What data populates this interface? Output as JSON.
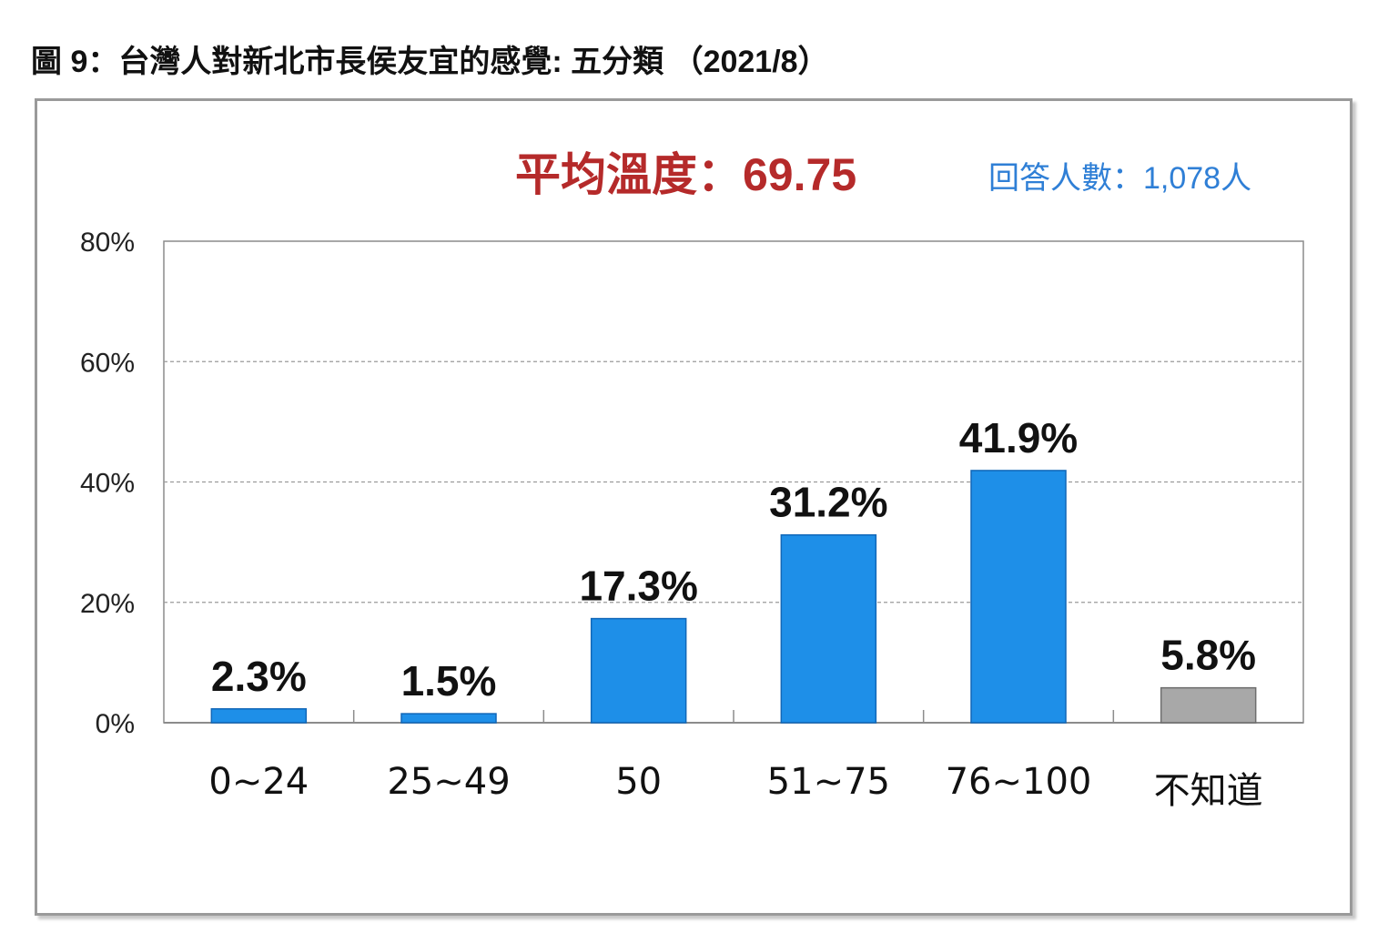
{
  "title": "圖 9：台灣人對新北市長侯友宜的感覺: 五分類 （2021/8）",
  "average": "平均溫度：69.75",
  "respondents": "回答人數：1,078人",
  "colors": {
    "bar": "#1e8fe8",
    "bar_dark": "#1167b8",
    "unknown": "#a8a8a8",
    "unknown_dark": "#6e6e6e",
    "average_text": "#b52a2a",
    "respondents_text": "#2f7fd6"
  },
  "chart_data": {
    "type": "bar",
    "categories": [
      "0~24",
      "25~49",
      "50",
      "51~75",
      "76~100",
      "不知道"
    ],
    "values": [
      2.3,
      1.5,
      17.3,
      31.2,
      41.9,
      5.8
    ],
    "data_labels": [
      "2.3%",
      "1.5%",
      "17.3%",
      "31.2%",
      "41.9%",
      "5.8%"
    ],
    "yticks": [
      "0%",
      "20%",
      "40%",
      "60%",
      "80%"
    ],
    "ylim": [
      0,
      80
    ],
    "grid": true,
    "legend": "none"
  }
}
